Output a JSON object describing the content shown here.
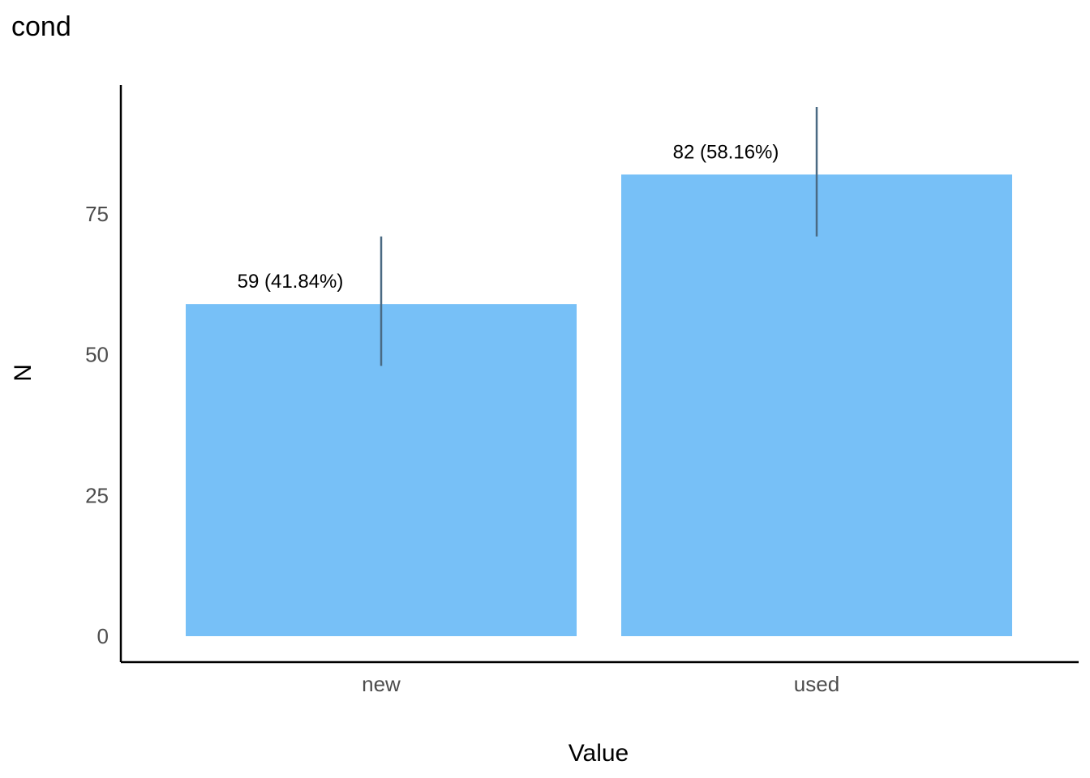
{
  "chart_data": {
    "type": "bar",
    "title": "cond",
    "xlabel": "Value",
    "ylabel": "N",
    "categories": [
      "new",
      "used"
    ],
    "values": [
      59,
      82
    ],
    "labels": [
      "59 (41.84%)",
      "82 (58.16%)"
    ],
    "error_bars": [
      {
        "low": 48,
        "high": 71
      },
      {
        "low": 71,
        "high": 94
      }
    ],
    "ylim": [
      0,
      97
    ],
    "yticks": [
      0,
      25,
      50,
      75
    ],
    "grid": false,
    "legend": "none",
    "colors": {
      "bar": "#77c0f7",
      "error": "#4a6a83",
      "axis": "#000000"
    }
  }
}
